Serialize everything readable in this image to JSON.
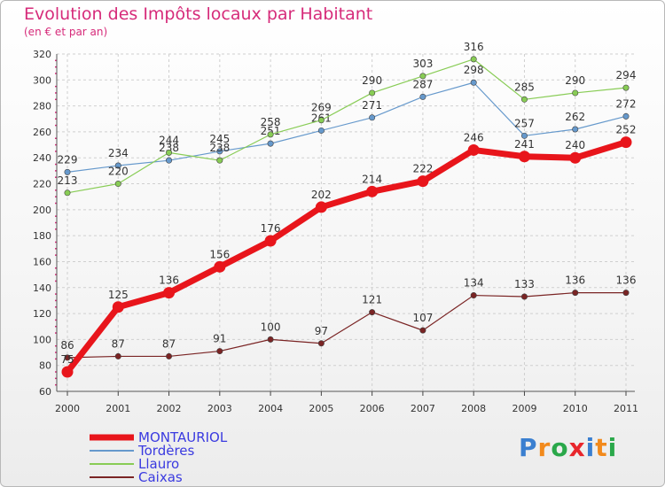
{
  "header": {
    "title": "Evolution des Impôts locaux par Habitant",
    "subtitle": "(en € et par an)"
  },
  "logo": {
    "text": "Proxiti",
    "letter_colors": [
      "#3a7fd0",
      "#f28a1c",
      "#2aa84a",
      "#e8262c",
      "#3a7fd0",
      "#f28a1c",
      "#2aa84a"
    ]
  },
  "colors": {
    "title": "#d62b7a",
    "axis_tick_dots": "#d62b7a",
    "grid": "#cfcfcf",
    "legend_text": "#3a3ae0"
  },
  "chart_data": {
    "type": "line",
    "x": [
      "2000",
      "2001",
      "2002",
      "2003",
      "2004",
      "2005",
      "2006",
      "2007",
      "2008",
      "2009",
      "2010",
      "2011"
    ],
    "ylim": [
      60,
      320
    ],
    "yticks": [
      60,
      80,
      100,
      120,
      140,
      160,
      180,
      200,
      220,
      240,
      260,
      280,
      300,
      320
    ],
    "grid": true,
    "legend_position": "bottom-left",
    "series": [
      {
        "name": "MONTAURIOL",
        "color": "#e8151b",
        "values": [
          75,
          125,
          136,
          156,
          176,
          202,
          214,
          222,
          246,
          241,
          240,
          252
        ]
      },
      {
        "name": "Tordères",
        "color": "#6699cc",
        "values": [
          229,
          234,
          238,
          245,
          251,
          261,
          271,
          287,
          298,
          257,
          262,
          272
        ]
      },
      {
        "name": "Llauro",
        "color": "#88cc55",
        "values": [
          213,
          220,
          244,
          238,
          258,
          269,
          290,
          303,
          316,
          285,
          290,
          294
        ]
      },
      {
        "name": "Caixas",
        "color": "#7a2424",
        "values": [
          86,
          87,
          87,
          91,
          100,
          97,
          121,
          107,
          134,
          133,
          136,
          136
        ]
      }
    ],
    "value_labels": {
      "MONTAURIOL": [
        "75",
        "125",
        "136",
        "156",
        "176",
        "202",
        "214",
        "222",
        "246",
        "241",
        "240",
        "252"
      ],
      "Tordères": [
        "229",
        "234",
        "238",
        "245",
        "251",
        "261",
        "271",
        "287",
        "298",
        "257",
        "262",
        "272"
      ],
      "Llauro": [
        "213",
        "220",
        "244",
        "238",
        "258",
        "269",
        "290",
        "303",
        "316",
        "285",
        "290",
        "294"
      ],
      "Caixas": [
        "86",
        "87",
        "87",
        "91",
        "100",
        "97",
        "121",
        "107",
        "134",
        "133",
        "136",
        "136"
      ]
    }
  }
}
